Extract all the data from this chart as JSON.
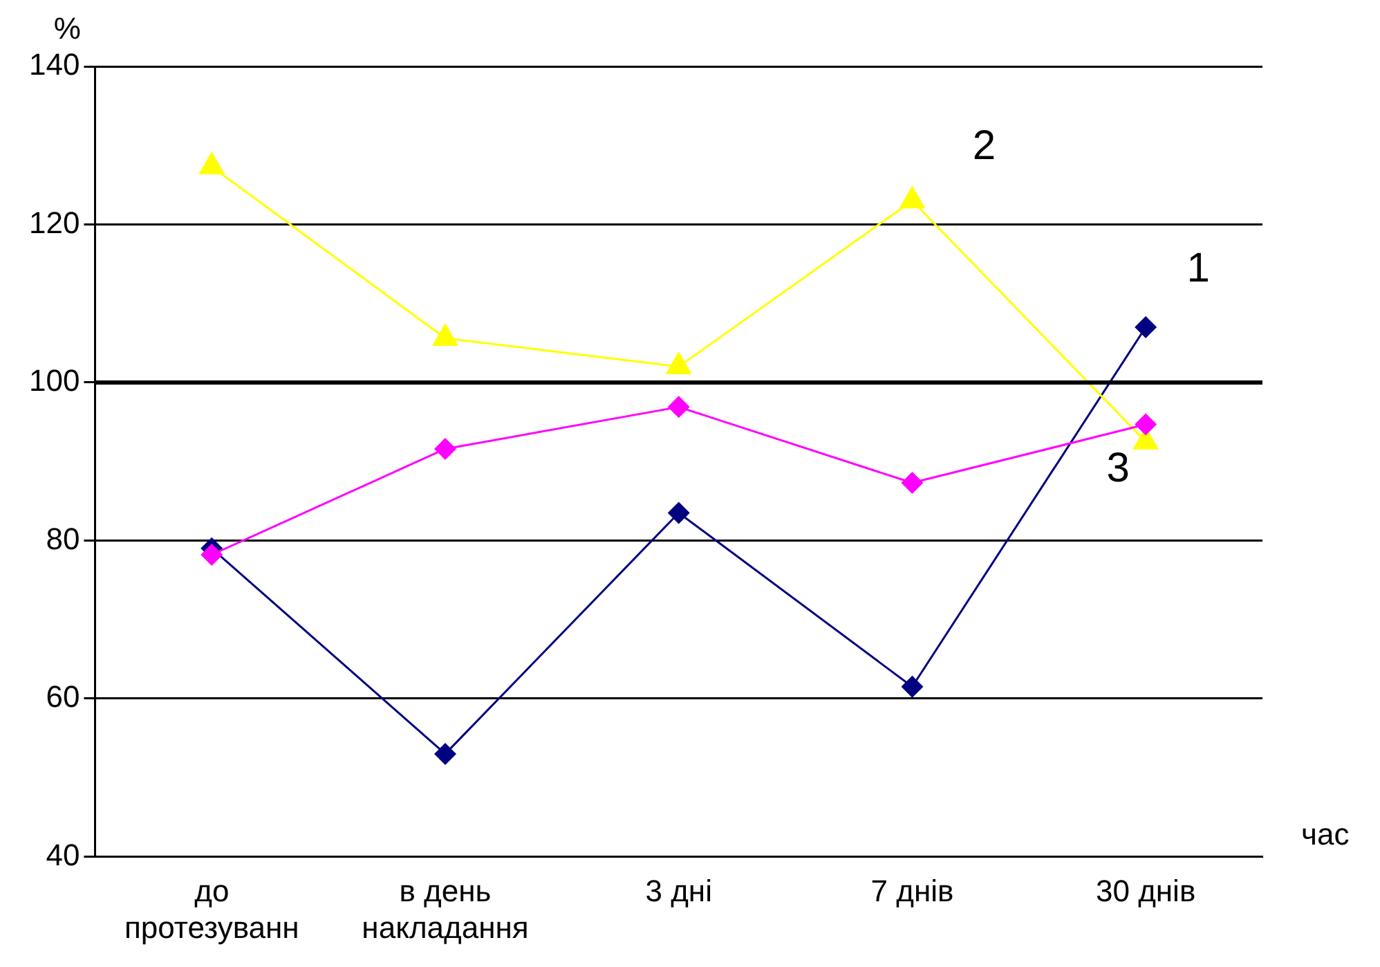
{
  "chart_data": {
    "type": "line",
    "xlabel": "час",
    "ylabel": "%",
    "categories": [
      "до\nпротезуванн",
      "в день\nнакладання",
      "3 дні",
      "7 днів",
      "30 днів"
    ],
    "series": [
      {
        "name": "1",
        "color": "#000080",
        "marker": "diamond",
        "values": [
          79,
          53,
          83.5,
          61.5,
          107
        ]
      },
      {
        "name": "2",
        "color": "#ffff00",
        "marker": "triangle",
        "values": [
          127.3,
          105.6,
          102,
          123,
          92.5
        ]
      },
      {
        "name": "3",
        "color": "#ff00ff",
        "marker": "diamond",
        "values": [
          78.2,
          91.6,
          96.9,
          87.3,
          94.7
        ]
      }
    ],
    "ylim": [
      40,
      140
    ],
    "yticks": [
      40,
      60,
      80,
      100,
      120,
      140
    ],
    "grid": "y",
    "legend": false,
    "ref_lines": [
      {
        "axis": "y",
        "value": 100,
        "color": "#000000"
      }
    ]
  }
}
